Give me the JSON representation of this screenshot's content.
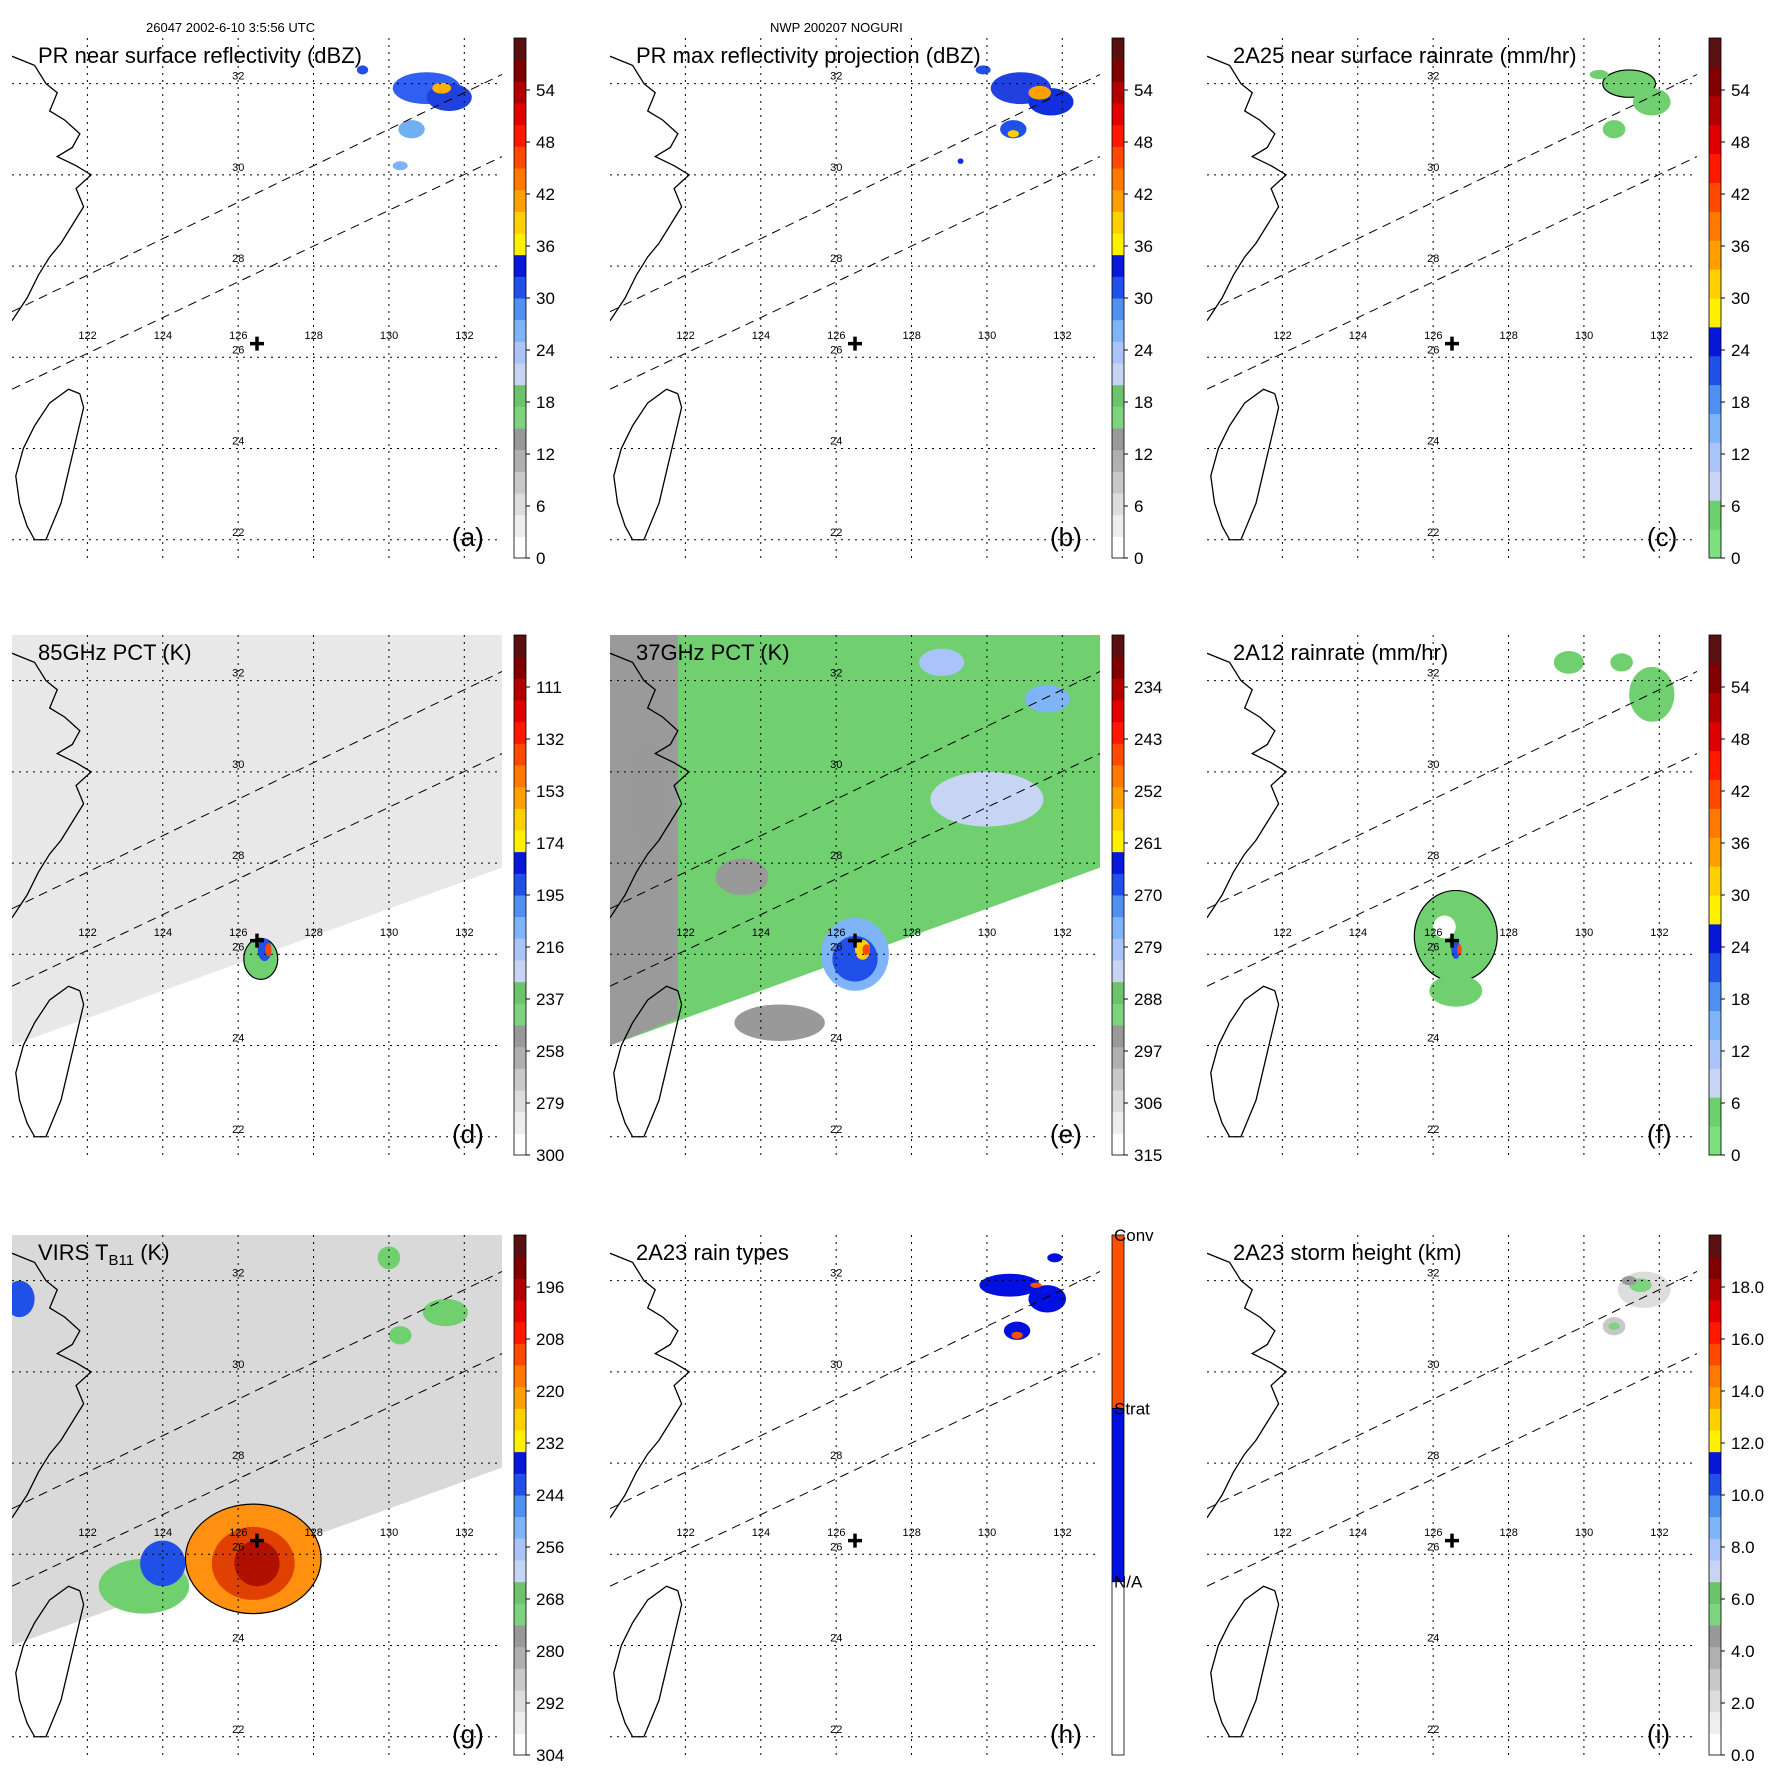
{
  "header": {
    "left": "26047 2002-6-10 3:5:56 UTC",
    "center": "NWP 200207 NOGURI"
  },
  "lon_labels": [
    "122",
    "124",
    "126",
    "128",
    "130",
    "132"
  ],
  "lat_labels": [
    "32",
    "30",
    "28",
    "26",
    "24",
    "22"
  ],
  "storm_center": {
    "lon": 126.5,
    "lat": 26.3
  },
  "panels": [
    {
      "id": "a",
      "letter": "(a)",
      "title": "PR near surface reflectivity (dBZ)",
      "ticks": [
        "0",
        "6",
        "12",
        "18",
        "24",
        "30",
        "36",
        "42",
        "48",
        "54"
      ],
      "scale": "radar",
      "swath": [
        {
          "lon": 120.0,
          "lat": 27.0
        },
        {
          "lon": 133.0,
          "lat": 32.1
        },
        {
          "lon": 133.0,
          "lat": 30.3
        },
        {
          "lon": 120.0,
          "lat": 25.3
        }
      ]
    },
    {
      "id": "b",
      "letter": "(b)",
      "title": "PR max reflectivity projection (dBZ)",
      "ticks": [
        "0",
        "6",
        "12",
        "18",
        "24",
        "30",
        "36",
        "42",
        "48",
        "54"
      ],
      "scale": "radar",
      "swath": [
        {
          "lon": 120.0,
          "lat": 27.0
        },
        {
          "lon": 133.0,
          "lat": 32.1
        },
        {
          "lon": 133.0,
          "lat": 30.3
        },
        {
          "lon": 120.0,
          "lat": 25.3
        }
      ]
    },
    {
      "id": "c",
      "letter": "(c)",
      "title": "2A25 near surface rainrate (mm/hr)",
      "ticks": [
        "0",
        "6",
        "12",
        "18",
        "24",
        "30",
        "36",
        "42",
        "48",
        "54"
      ],
      "scale": "rain",
      "swath": [
        {
          "lon": 120.0,
          "lat": 27.0
        },
        {
          "lon": 133.0,
          "lat": 32.1
        },
        {
          "lon": 133.0,
          "lat": 30.3
        },
        {
          "lon": 120.0,
          "lat": 25.3
        }
      ]
    },
    {
      "id": "d",
      "letter": "(d)",
      "title": "85GHz PCT (K)",
      "ticks": [
        "300",
        "279",
        "258",
        "237",
        "216",
        "195",
        "174",
        "153",
        "132",
        "111"
      ],
      "scale": "pct",
      "swath": [
        {
          "lon": 120.0,
          "lat": 27.0
        },
        {
          "lon": 133.0,
          "lat": 32.1
        },
        {
          "lon": 133.0,
          "lat": 30.3
        },
        {
          "lon": 120.0,
          "lat": 25.3
        }
      ]
    },
    {
      "id": "e",
      "letter": "(e)",
      "title": "37GHz PCT (K)",
      "ticks": [
        "315",
        "306",
        "297",
        "288",
        "279",
        "270",
        "261",
        "252",
        "243",
        "234"
      ],
      "scale": "pct",
      "swath": [
        {
          "lon": 120.0,
          "lat": 27.0
        },
        {
          "lon": 133.0,
          "lat": 32.1
        },
        {
          "lon": 133.0,
          "lat": 30.3
        },
        {
          "lon": 120.0,
          "lat": 25.3
        }
      ]
    },
    {
      "id": "f",
      "letter": "(f)",
      "title": "2A12 rainrate (mm/hr)",
      "ticks": [
        "0",
        "6",
        "12",
        "18",
        "24",
        "30",
        "36",
        "42",
        "48",
        "54"
      ],
      "scale": "rain",
      "swath": [
        {
          "lon": 120.0,
          "lat": 27.0
        },
        {
          "lon": 133.0,
          "lat": 32.1
        },
        {
          "lon": 133.0,
          "lat": 30.3
        },
        {
          "lon": 120.0,
          "lat": 25.3
        }
      ]
    },
    {
      "id": "g",
      "letter": "(g)",
      "title_main": "VIRS T",
      "title_sub": "B11",
      "title_tail": " (K)",
      "ticks": [
        "304",
        "292",
        "280",
        "268",
        "256",
        "244",
        "232",
        "220",
        "208",
        "196"
      ],
      "scale": "pct",
      "swath": [
        {
          "lon": 120.0,
          "lat": 27.0
        },
        {
          "lon": 133.0,
          "lat": 32.1
        },
        {
          "lon": 133.0,
          "lat": 30.3
        },
        {
          "lon": 120.0,
          "lat": 25.3
        }
      ]
    },
    {
      "id": "h",
      "letter": "(h)",
      "title": "2A23 rain types",
      "ticks": [
        "N/A",
        "Strat",
        "Conv"
      ],
      "scale": "types",
      "swath": [
        {
          "lon": 120.0,
          "lat": 27.0
        },
        {
          "lon": 133.0,
          "lat": 32.1
        },
        {
          "lon": 133.0,
          "lat": 30.3
        },
        {
          "lon": 120.0,
          "lat": 25.3
        }
      ]
    },
    {
      "id": "i",
      "letter": "(i)",
      "title": "2A23 storm height (km)",
      "ticks": [
        "0.0",
        "2.0",
        "4.0",
        "6.0",
        "8.0",
        "10.0",
        "12.0",
        "14.0",
        "16.0",
        "18.0"
      ],
      "scale": "height",
      "swath": [
        {
          "lon": 120.0,
          "lat": 27.0
        },
        {
          "lon": 133.0,
          "lat": 32.1
        },
        {
          "lon": 133.0,
          "lat": 30.3
        },
        {
          "lon": 120.0,
          "lat": 25.3
        }
      ]
    }
  ],
  "colors": {
    "radar": [
      "#ffffff",
      "#eeeeee",
      "#dddddd",
      "#c8c8c8",
      "#b0b0b0",
      "#999999",
      "#7ed47e",
      "#6cc36c",
      "#c8d4f4",
      "#a8c4f8",
      "#80b4f8",
      "#5090f0",
      "#2050e8",
      "#0818d8",
      "#fff000",
      "#ffd000",
      "#ffa000",
      "#ff7800",
      "#ff4800",
      "#ff1800",
      "#e00000",
      "#b00000",
      "#800000",
      "#5a1010"
    ],
    "rain": [
      "#7ee07e",
      "#6cd06c",
      "#c8d4f4",
      "#a8c4f8",
      "#80b4f8",
      "#5090f0",
      "#2050e8",
      "#0818d8",
      "#fff000",
      "#ffd000",
      "#ffa000",
      "#ff7800",
      "#ff4800",
      "#ff1800",
      "#e00000",
      "#b00000",
      "#800000",
      "#5a1010"
    ],
    "pct": [
      "#ffffff",
      "#eeeeee",
      "#dddddd",
      "#c8c8c8",
      "#b0b0b0",
      "#999999",
      "#7ed47e",
      "#6cc36c",
      "#c8d4f4",
      "#a8c4f8",
      "#80b4f8",
      "#5090f0",
      "#2050e8",
      "#0818d8",
      "#fff000",
      "#ffd000",
      "#ffa000",
      "#ff7800",
      "#ff4800",
      "#ff1800",
      "#e00000",
      "#b00000",
      "#800000",
      "#5a1010"
    ],
    "height": [
      "#ffffff",
      "#eeeeee",
      "#dddddd",
      "#c8c8c8",
      "#b0b0b0",
      "#999999",
      "#7ed47e",
      "#6cc36c",
      "#c8d4f4",
      "#a8c4f8",
      "#80b4f8",
      "#5090f0",
      "#2050e8",
      "#0818d8",
      "#fff000",
      "#ffd000",
      "#ffa000",
      "#ff7800",
      "#ff4800",
      "#ff1800",
      "#e00000",
      "#b00000",
      "#800000",
      "#5a1010"
    ],
    "types": [
      "#ffffff",
      "#0010e0",
      "#ff5000"
    ],
    "blue": "#1030e0",
    "green": "#70d070",
    "gray": "#d9d9d9",
    "orange": "#ff9010",
    "red": "#e02000",
    "dark": "#000000"
  },
  "features": {
    "a": [
      {
        "kind": "blob",
        "lon": 131.0,
        "lat": 31.9,
        "rx": 0.9,
        "ry": 0.35,
        "color": "#3060f0"
      },
      {
        "kind": "blob",
        "lon": 131.6,
        "lat": 31.7,
        "rx": 0.6,
        "ry": 0.3,
        "color": "#2040e0"
      },
      {
        "kind": "blob",
        "lon": 131.4,
        "lat": 31.9,
        "rx": 0.25,
        "ry": 0.12,
        "color": "#ffb000"
      },
      {
        "kind": "blob",
        "lon": 130.6,
        "lat": 31.0,
        "rx": 0.35,
        "ry": 0.2,
        "color": "#70b0f0"
      },
      {
        "kind": "blob",
        "lon": 130.3,
        "lat": 30.2,
        "rx": 0.2,
        "ry": 0.1,
        "color": "#80b4f8"
      },
      {
        "kind": "blob",
        "lon": 129.3,
        "lat": 32.3,
        "rx": 0.15,
        "ry": 0.1,
        "color": "#2050e8"
      }
    ],
    "b": [
      {
        "kind": "blob",
        "lon": 130.9,
        "lat": 31.9,
        "rx": 0.8,
        "ry": 0.35,
        "color": "#2040e0"
      },
      {
        "kind": "blob",
        "lon": 131.7,
        "lat": 31.6,
        "rx": 0.6,
        "ry": 0.3,
        "color": "#1030e0"
      },
      {
        "kind": "blob",
        "lon": 131.4,
        "lat": 31.8,
        "rx": 0.3,
        "ry": 0.15,
        "color": "#ffa000"
      },
      {
        "kind": "blob",
        "lon": 130.7,
        "lat": 31.0,
        "rx": 0.35,
        "ry": 0.2,
        "color": "#2050e8"
      },
      {
        "kind": "blob",
        "lon": 130.7,
        "lat": 30.9,
        "rx": 0.15,
        "ry": 0.08,
        "color": "#ffd000"
      },
      {
        "kind": "blob",
        "lon": 129.9,
        "lat": 32.3,
        "rx": 0.2,
        "ry": 0.1,
        "color": "#2050e8"
      },
      {
        "kind": "blob",
        "lon": 129.3,
        "lat": 30.3,
        "rx": 0.08,
        "ry": 0.06,
        "color": "#1030e0"
      }
    ],
    "c": [
      {
        "kind": "blob",
        "lon": 131.2,
        "lat": 32.0,
        "rx": 0.7,
        "ry": 0.3,
        "color": "#70d070"
      },
      {
        "kind": "blob",
        "lon": 131.8,
        "lat": 31.6,
        "rx": 0.5,
        "ry": 0.3,
        "color": "#70d070"
      },
      {
        "kind": "blob",
        "lon": 130.8,
        "lat": 31.0,
        "rx": 0.3,
        "ry": 0.2,
        "color": "#70d070"
      },
      {
        "kind": "blob",
        "lon": 130.4,
        "lat": 32.2,
        "rx": 0.25,
        "ry": 0.1,
        "color": "#70d070"
      }
    ],
    "d": [
      {
        "kind": "blob",
        "lon": 126.6,
        "lat": 25.9,
        "rx": 0.45,
        "ry": 0.45,
        "color": "#70d070"
      },
      {
        "kind": "blob",
        "lon": 126.7,
        "lat": 26.1,
        "rx": 0.18,
        "ry": 0.25,
        "color": "#2050e8"
      },
      {
        "kind": "blob",
        "lon": 126.8,
        "lat": 26.1,
        "rx": 0.08,
        "ry": 0.14,
        "color": "#ff4800"
      }
    ],
    "e": [
      {
        "kind": "blob",
        "lon": 126.5,
        "lat": 26.0,
        "rx": 0.9,
        "ry": 0.8,
        "color": "#80b4f8"
      },
      {
        "kind": "blob",
        "lon": 126.5,
        "lat": 25.9,
        "rx": 0.6,
        "ry": 0.5,
        "color": "#2050e8"
      },
      {
        "kind": "blob",
        "lon": 126.7,
        "lat": 26.1,
        "rx": 0.2,
        "ry": 0.22,
        "color": "#ffd000"
      },
      {
        "kind": "blob",
        "lon": 126.8,
        "lat": 26.1,
        "rx": 0.1,
        "ry": 0.12,
        "color": "#ff4800"
      },
      {
        "kind": "blob",
        "lon": 123.5,
        "lat": 27.7,
        "rx": 0.7,
        "ry": 0.4,
        "color": "#999999"
      },
      {
        "kind": "blob",
        "lon": 124.5,
        "lat": 24.5,
        "rx": 1.2,
        "ry": 0.4,
        "color": "#999999"
      },
      {
        "kind": "blob",
        "lon": 130.0,
        "lat": 29.4,
        "rx": 1.5,
        "ry": 0.6,
        "color": "#c8d4f4"
      },
      {
        "kind": "blob",
        "lon": 131.6,
        "lat": 31.6,
        "rx": 0.6,
        "ry": 0.3,
        "color": "#80b4f8"
      },
      {
        "kind": "blob",
        "lon": 128.8,
        "lat": 32.4,
        "rx": 0.6,
        "ry": 0.3,
        "color": "#a8c4f8"
      },
      {
        "kind": "blob",
        "lon": 121.0,
        "lat": 29.5,
        "rx": 0.5,
        "ry": 1.2,
        "color": "#999999"
      }
    ],
    "f": [
      {
        "kind": "blob",
        "lon": 126.6,
        "lat": 26.4,
        "rx": 1.1,
        "ry": 1.0,
        "color": "#70d070"
      },
      {
        "kind": "blob",
        "lon": 126.6,
        "lat": 25.2,
        "rx": 0.7,
        "ry": 0.35,
        "color": "#70d070"
      },
      {
        "kind": "blob",
        "lon": 126.3,
        "lat": 26.6,
        "rx": 0.3,
        "ry": 0.25,
        "color": "#ffffff"
      },
      {
        "kind": "blob",
        "lon": 126.6,
        "lat": 26.1,
        "rx": 0.12,
        "ry": 0.2,
        "color": "#2050e8"
      },
      {
        "kind": "blob",
        "lon": 126.7,
        "lat": 26.1,
        "rx": 0.06,
        "ry": 0.12,
        "color": "#ff4800"
      },
      {
        "kind": "blob",
        "lon": 131.8,
        "lat": 31.7,
        "rx": 0.6,
        "ry": 0.6,
        "color": "#70d070"
      },
      {
        "kind": "blob",
        "lon": 129.6,
        "lat": 32.4,
        "rx": 0.4,
        "ry": 0.25,
        "color": "#70d070"
      },
      {
        "kind": "blob",
        "lon": 131.0,
        "lat": 32.4,
        "rx": 0.3,
        "ry": 0.2,
        "color": "#70d070"
      }
    ],
    "g": [
      {
        "kind": "blob",
        "lon": 126.4,
        "lat": 25.9,
        "rx": 1.8,
        "ry": 1.2,
        "color": "#ff9010"
      },
      {
        "kind": "blob",
        "lon": 126.4,
        "lat": 25.8,
        "rx": 1.1,
        "ry": 0.8,
        "color": "#e04000"
      },
      {
        "kind": "blob",
        "lon": 126.5,
        "lat": 25.8,
        "rx": 0.6,
        "ry": 0.5,
        "color": "#b01000"
      },
      {
        "kind": "blob",
        "lon": 123.5,
        "lat": 25.3,
        "rx": 1.2,
        "ry": 0.6,
        "color": "#70d070"
      },
      {
        "kind": "blob",
        "lon": 124.0,
        "lat": 25.8,
        "rx": 0.6,
        "ry": 0.5,
        "color": "#2050e8"
      },
      {
        "kind": "blob",
        "lon": 131.5,
        "lat": 31.3,
        "rx": 0.6,
        "ry": 0.3,
        "color": "#70d070"
      },
      {
        "kind": "blob",
        "lon": 130.0,
        "lat": 32.5,
        "rx": 0.3,
        "ry": 0.25,
        "color": "#70d070"
      },
      {
        "kind": "blob",
        "lon": 130.3,
        "lat": 30.8,
        "rx": 0.3,
        "ry": 0.2,
        "color": "#70d070"
      },
      {
        "kind": "blob",
        "lon": 120.2,
        "lat": 31.6,
        "rx": 0.4,
        "ry": 0.4,
        "color": "#2050e8"
      }
    ],
    "h": [
      {
        "kind": "blob",
        "lon": 130.6,
        "lat": 31.9,
        "rx": 0.8,
        "ry": 0.25,
        "color": "#0010e0"
      },
      {
        "kind": "blob",
        "lon": 131.6,
        "lat": 31.6,
        "rx": 0.5,
        "ry": 0.3,
        "color": "#0010e0"
      },
      {
        "kind": "blob",
        "lon": 130.8,
        "lat": 30.9,
        "rx": 0.35,
        "ry": 0.2,
        "color": "#0010e0"
      },
      {
        "kind": "blob",
        "lon": 130.8,
        "lat": 30.8,
        "rx": 0.15,
        "ry": 0.08,
        "color": "#ff5000"
      },
      {
        "kind": "blob",
        "lon": 131.3,
        "lat": 31.9,
        "rx": 0.15,
        "ry": 0.06,
        "color": "#ff5000"
      },
      {
        "kind": "blob",
        "lon": 131.8,
        "lat": 32.5,
        "rx": 0.2,
        "ry": 0.1,
        "color": "#0010e0"
      }
    ],
    "i": [
      {
        "kind": "blob",
        "lon": 131.6,
        "lat": 31.8,
        "rx": 0.7,
        "ry": 0.4,
        "color": "#dddddd"
      },
      {
        "kind": "blob",
        "lon": 131.5,
        "lat": 31.9,
        "rx": 0.3,
        "ry": 0.15,
        "color": "#7ed47e"
      },
      {
        "kind": "blob",
        "lon": 131.2,
        "lat": 32.0,
        "rx": 0.2,
        "ry": 0.1,
        "color": "#999999"
      },
      {
        "kind": "blob",
        "lon": 130.8,
        "lat": 31.0,
        "rx": 0.3,
        "ry": 0.2,
        "color": "#c8c8c8"
      },
      {
        "kind": "blob",
        "lon": 130.8,
        "lat": 31.0,
        "rx": 0.15,
        "ry": 0.08,
        "color": "#7ed47e"
      }
    ]
  }
}
